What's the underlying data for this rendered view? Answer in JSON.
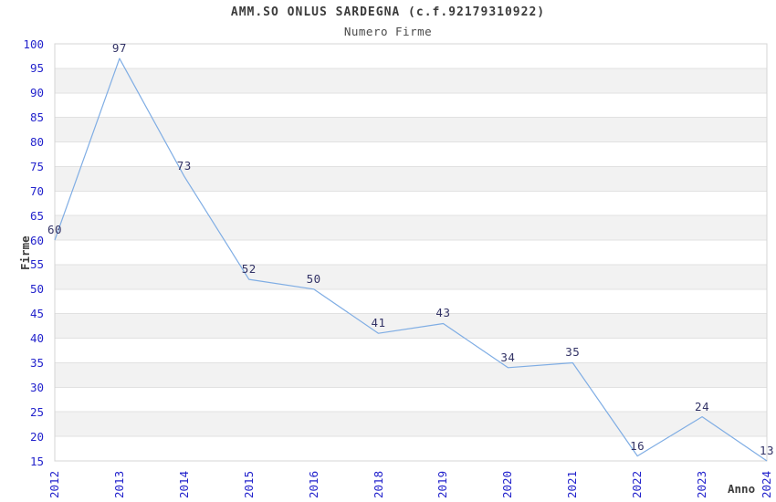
{
  "page": {
    "background": "#ffffff"
  },
  "chart_data": {
    "type": "line",
    "title": "AMM.SO ONLUS SARDEGNA (c.f.92179310922)",
    "subtitle": "Numero Firme",
    "xlabel": "Anno",
    "ylabel": "Firme",
    "categories": [
      "2012",
      "2013",
      "2014",
      "2015",
      "2016",
      "2018",
      "2019",
      "2020",
      "2021",
      "2022",
      "2023",
      "2024"
    ],
    "values": [
      60,
      97,
      73,
      52,
      50,
      41,
      43,
      34,
      35,
      16,
      24,
      13
    ],
    "ylim": [
      15,
      100
    ],
    "ytick_step": 5,
    "grid": true,
    "legend_position": "none",
    "show_point_labels": true,
    "colors": {
      "line": "#7fade4",
      "axis_tick_label": "#2323cc",
      "point_label": "#333366",
      "band_fill": "#f2f2f2",
      "gridline": "#e1e1e1",
      "plot_border": "#d4d4d4",
      "text": "#3c3c3c"
    }
  }
}
